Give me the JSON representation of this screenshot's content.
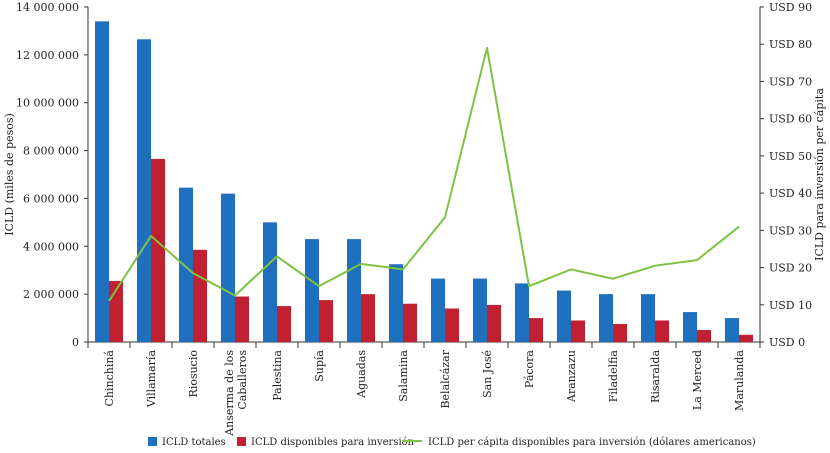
{
  "chart_data": {
    "type": "bar",
    "categories": [
      "Chinchiná",
      "Villamaría",
      "Riosucio",
      "Anserma de los Caballeros",
      "Palestina",
      "Supía",
      "Aguadas",
      "Salamina",
      "Belalcázar",
      "San José",
      "Pácora",
      "Aranzazu",
      "Filadelfia",
      "Risaralda",
      "La Merced",
      "Marulanda"
    ],
    "series": [
      {
        "name": "ICLD totales",
        "axis": "left",
        "type": "bar",
        "color": "#1f6fbf",
        "values": [
          13400000,
          12650000,
          6450000,
          6200000,
          5000000,
          4300000,
          4300000,
          3250000,
          2650000,
          2650000,
          2450000,
          2150000,
          2000000,
          2000000,
          1250000,
          1000000
        ]
      },
      {
        "name": "ICLD disponibles para inversión",
        "axis": "left",
        "type": "bar",
        "color": "#c0202f",
        "values": [
          2550000,
          7650000,
          3850000,
          1900000,
          1500000,
          1750000,
          2000000,
          1600000,
          1400000,
          1550000,
          1000000,
          900000,
          750000,
          900000,
          500000,
          300000
        ]
      },
      {
        "name": "ICLD per cápita disponibles para inversión (dólares americanos)",
        "axis": "right",
        "type": "line",
        "color": "#7dc242",
        "values": [
          11,
          28.5,
          18.5,
          12.5,
          23,
          15,
          21,
          19.5,
          33.5,
          79,
          15,
          19.5,
          17,
          20.5,
          22,
          31
        ]
      }
    ],
    "left_axis": {
      "label": "ICLD (miles de pesos)",
      "ylim": [
        0,
        14000000
      ],
      "ticks": [
        "0",
        "2 000 000",
        "4 000 000",
        "6 000 000",
        "8 000 000",
        "10 000 000",
        "12 000 000",
        "14 000 000"
      ]
    },
    "right_axis": {
      "label": "ICLD para inversión per cápita",
      "ylim": [
        0,
        90
      ],
      "ticks": [
        "USD 0",
        "USD 10",
        "USD 20",
        "USD 30",
        "USD 40",
        "USD 50",
        "USD 60",
        "USD 70",
        "USD 80",
        "USD 90"
      ]
    },
    "legend_placement": "bottom",
    "grid": false
  }
}
